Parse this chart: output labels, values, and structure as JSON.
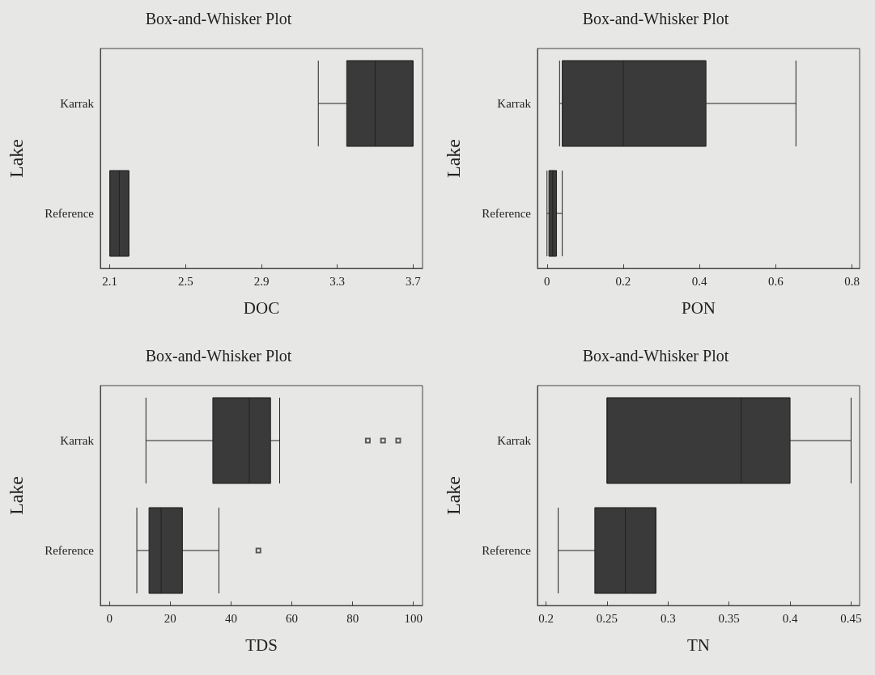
{
  "chart_data": [
    {
      "type": "box",
      "title": "Box-and-Whisker Plot",
      "xlabel": "DOC",
      "ylabel": "Lake",
      "orientation": "horizontal",
      "categories": [
        "Karrak",
        "Reference"
      ],
      "xlim": [
        2.05,
        3.75
      ],
      "xticks": [
        2.1,
        2.5,
        2.9,
        3.3,
        3.7
      ],
      "grid": false,
      "series": [
        {
          "color": "#3a3a3a",
          "boxes": [
            {
              "low": 3.2,
              "q1": 3.35,
              "median": 3.5,
              "q3": 3.7,
              "high": 3.7
            },
            {
              "low": 2.1,
              "q1": 2.1,
              "median": 2.15,
              "q3": 2.2,
              "high": 2.2
            }
          ]
        }
      ]
    },
    {
      "type": "box",
      "title": "Box-and-Whisker Plot",
      "xlabel": "PON",
      "ylabel": "Lake",
      "orientation": "horizontal",
      "categories": [
        "Karrak",
        "Reference"
      ],
      "xlim": [
        -0.025,
        0.82
      ],
      "xticks": [
        0,
        0.2,
        0.4,
        0.6,
        0.8
      ],
      "grid": false,
      "series": [
        {
          "color": "#3a3a3a",
          "boxes": [
            {
              "low": 0.033,
              "q1": 0.04,
              "median": 0.2,
              "q3": 0.417,
              "high": 0.653
            },
            {
              "low": 0,
              "q1": 0.005,
              "median": 0.015,
              "q3": 0.025,
              "high": 0.04
            }
          ]
        }
      ]
    },
    {
      "type": "box",
      "title": "Box-and-Whisker Plot",
      "xlabel": "TDS",
      "ylabel": "Lake",
      "orientation": "horizontal",
      "categories": [
        "Karrak",
        "Reference"
      ],
      "xlim": [
        -3,
        103
      ],
      "xticks": [
        0,
        20,
        40,
        60,
        80,
        100
      ],
      "grid": false,
      "series": [
        {
          "color": "#3a3a3a",
          "boxes": [
            {
              "low": 12,
              "q1": 34,
              "median": 46,
              "q3": 53,
              "high": 56,
              "outliers": [
                85,
                90,
                95
              ]
            },
            {
              "low": 9,
              "q1": 13,
              "median": 17,
              "q3": 24,
              "high": 36,
              "outliers": [
                49
              ]
            }
          ]
        }
      ]
    },
    {
      "type": "box",
      "title": "Box-and-Whisker Plot",
      "xlabel": "TN",
      "ylabel": "Lake",
      "orientation": "horizontal",
      "categories": [
        "Karrak",
        "Reference"
      ],
      "xlim": [
        0.193,
        0.457
      ],
      "xticks": [
        0.2,
        0.25,
        0.3,
        0.35,
        0.4,
        0.45
      ],
      "grid": false,
      "series": [
        {
          "color": "#3a3a3a",
          "boxes": [
            {
              "low": 0.25,
              "q1": 0.25,
              "median": 0.36,
              "q3": 0.4,
              "high": 0.45
            },
            {
              "low": 0.21,
              "q1": 0.24,
              "median": 0.265,
              "q3": 0.29,
              "high": 0.29
            }
          ]
        }
      ]
    }
  ]
}
